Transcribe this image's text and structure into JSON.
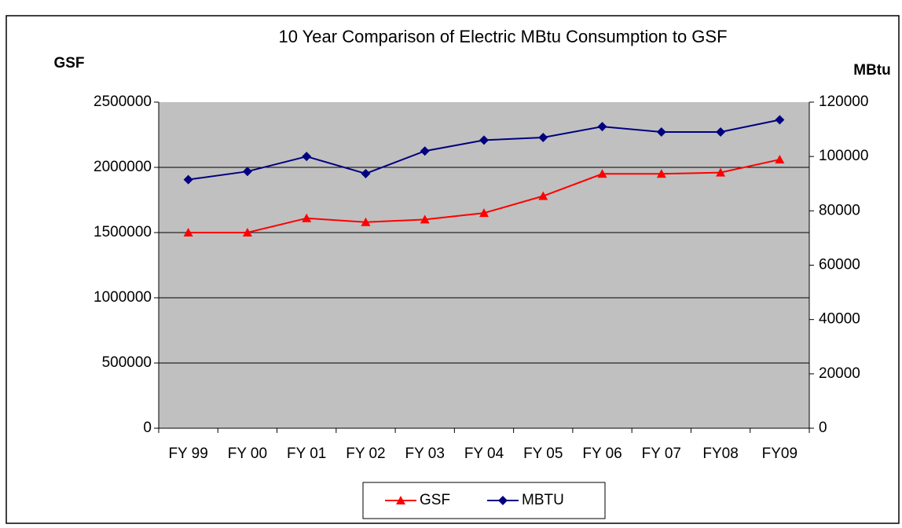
{
  "chart_data": {
    "type": "line",
    "title": "10 Year Comparison of Electric MBtu Consumption to GSF",
    "y_label": "GSF",
    "y2_label": "MBtu",
    "categories": [
      "FY 99",
      "FY 00",
      "FY 01",
      "FY 02",
      "FY 03",
      "FY 04",
      "FY 05",
      "FY 06",
      "FY 07",
      "FY08",
      "FY09"
    ],
    "series": [
      {
        "name": "GSF",
        "color": "#ff0000",
        "marker": "triangle",
        "values": [
          1500000,
          1500000,
          1610000,
          1580000,
          1600000,
          1650000,
          1780000,
          1950000,
          1950000,
          1960000,
          2060000
        ]
      },
      {
        "name": "MBTU",
        "color": "#000080",
        "marker": "diamond",
        "axis": "y2",
        "values": [
          91500,
          94500,
          100000,
          93700,
          102000,
          106000,
          107000,
          111000,
          109000,
          109000,
          113500
        ]
      }
    ],
    "ylim": [
      0,
      2500000
    ],
    "yticks": [
      0,
      500000,
      1000000,
      1500000,
      2000000,
      2500000
    ],
    "y2lim": [
      0,
      120000
    ],
    "y2ticks": [
      0,
      20000,
      40000,
      60000,
      80000,
      100000,
      120000
    ],
    "grid": true,
    "legend": "bottom"
  }
}
